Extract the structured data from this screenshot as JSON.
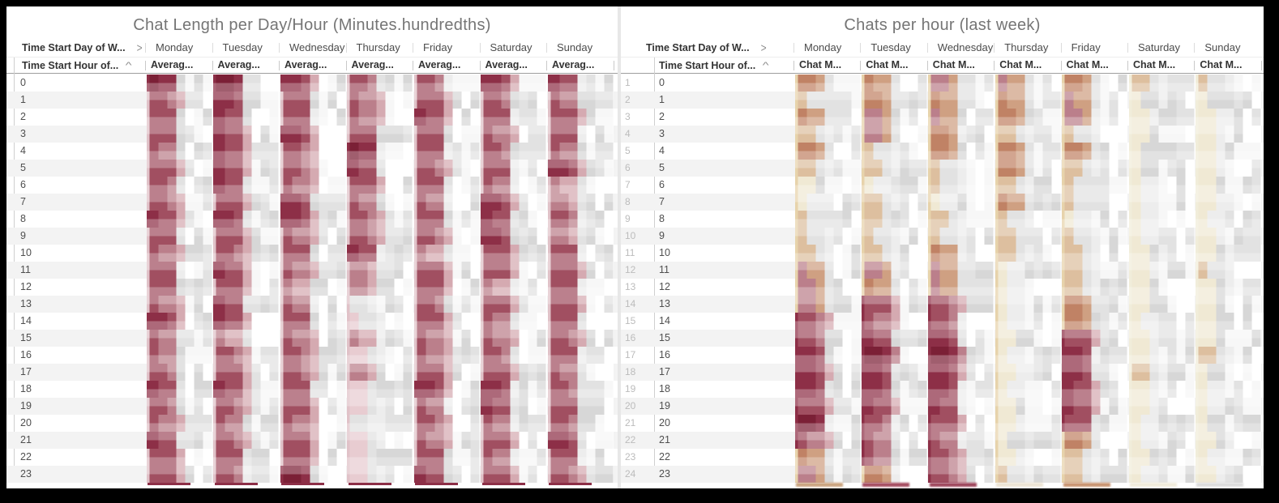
{
  "frame": {
    "background": "#000000",
    "panel_background": "#ffffff",
    "divider": "#e7e7e7"
  },
  "palette": {
    "maroon": [
      "#7b2036",
      "#8d2f47",
      "#a14f61",
      "#bb7f8b",
      "#d5aab1",
      "#e8ccd1"
    ],
    "warm": [
      "#c08265",
      "#cfa082",
      "#ddbf9f",
      "#ecdcc0",
      "#f3eddb"
    ],
    "gray": [
      "#d7d7d7",
      "#e2e2e2",
      "#ededed",
      "#f7f7f7",
      "#ffffff"
    ],
    "stripe_rose": "#e0c2c8",
    "stripe_rose_dark": "#8d2f47",
    "stripe_tan": "#e7d3ab",
    "stripe_cream": "#f1edda",
    "row_alt": "#f3f3f3",
    "header_line": "#9e9e9e",
    "light_line": "#ededed",
    "title_color": "#757575",
    "header_text": "#333333",
    "day_text": "#4c4c4c",
    "hour_text": "#4f4f4f",
    "row_number_text": "#bcbcbc",
    "total_cut_bar": "#8c2e46",
    "partial_row_colors_right": [
      "#c9a27c",
      "#a3495e",
      "#9c4258",
      "#ece4d4",
      "#c8926e",
      "#f0ebdb",
      "#dcdcdc"
    ]
  },
  "panels": [
    {
      "title": "Chat Length per Day/Hour (Minutes.hundredths)",
      "column_field_label": "Time Start Day of W...",
      "column_sort_icon": "chevron-right-icon",
      "row_field_label": "Time Start Hour of...",
      "row_sort_icon": "caret-up-icon",
      "measure_label": "Averag...",
      "days": [
        "Monday",
        "Tuesday",
        "Wednesday",
        "Thursday",
        "Friday",
        "Saturday",
        "Sunday"
      ],
      "hours": [
        "0",
        "1",
        "2",
        "3",
        "4",
        "5",
        "6",
        "7",
        "8",
        "9",
        "10",
        "11",
        "12",
        "13",
        "14",
        "15",
        "16",
        "17",
        "18",
        "19",
        "20",
        "21",
        "22",
        "23"
      ],
      "row_numbers": [],
      "tone": "rose"
    },
    {
      "title": "Chats per hour (last week)",
      "column_field_label": "Time Start Day of W...",
      "column_sort_icon": "chevron-right-icon",
      "row_field_label": "Time Start Hour of...",
      "row_sort_icon": "caret-up-icon",
      "measure_label": "Chat M...",
      "days": [
        "Monday",
        "Tuesday",
        "Wednesday",
        "Thursday",
        "Friday",
        "Saturday",
        "Sunday"
      ],
      "hours": [
        "0",
        "1",
        "2",
        "3",
        "4",
        "5",
        "6",
        "7",
        "8",
        "9",
        "10",
        "11",
        "12",
        "13",
        "14",
        "15",
        "16",
        "17",
        "18",
        "19",
        "20",
        "21",
        "22",
        "23"
      ],
      "row_numbers": [
        "1",
        "2",
        "3",
        "4",
        "5",
        "6",
        "7",
        "8",
        "9",
        "10",
        "11",
        "12",
        "13",
        "14",
        "15",
        "16",
        "17",
        "18",
        "19",
        "20",
        "21",
        "22",
        "23",
        "24"
      ],
      "tone": "warm"
    }
  ],
  "chart_data": [
    {
      "type": "heatmap",
      "title": "Chat Length per Day/Hour (Minutes.hundredths)",
      "x": [
        "Monday",
        "Tuesday",
        "Wednesday",
        "Thursday",
        "Friday",
        "Saturday",
        "Sunday"
      ],
      "y": [
        0,
        1,
        2,
        3,
        4,
        5,
        6,
        7,
        8,
        9,
        10,
        11,
        12,
        13,
        14,
        15,
        16,
        17,
        18,
        19,
        20,
        21,
        22,
        23
      ],
      "values_readable": false,
      "note": "Cell values are pixelated/redacted in the source screenshot; intensity 0-9 estimated from pixel color density",
      "series": [
        {
          "name": "Monday",
          "intensity": [
            9,
            6,
            5,
            6,
            6,
            5,
            6,
            6,
            7,
            6,
            5,
            6,
            5,
            6,
            7,
            5,
            6,
            6,
            7,
            5,
            6,
            8,
            5,
            6
          ]
        },
        {
          "name": "Tuesday",
          "intensity": [
            9,
            8,
            8,
            7,
            8,
            8,
            7,
            6,
            7,
            6,
            6,
            7,
            6,
            7,
            7,
            4,
            6,
            6,
            7,
            6,
            5,
            6,
            6,
            6
          ]
        },
        {
          "name": "Wednesday",
          "intensity": [
            8,
            6,
            6,
            8,
            5,
            5,
            5,
            8,
            7,
            6,
            5,
            5,
            4,
            5,
            6,
            5,
            5,
            5,
            6,
            5,
            6,
            5,
            5,
            9
          ]
        },
        {
          "name": "Thursday",
          "intensity": [
            6,
            5,
            6,
            6,
            9,
            8,
            5,
            5,
            6,
            5,
            7,
            4,
            3,
            1,
            2,
            3,
            2,
            3,
            2,
            2,
            1,
            2,
            2,
            2
          ]
        },
        {
          "name": "Friday",
          "intensity": [
            6,
            6,
            8,
            6,
            6,
            5,
            6,
            6,
            6,
            5,
            4,
            5,
            5,
            5,
            6,
            5,
            5,
            6,
            8,
            5,
            5,
            6,
            5,
            7
          ]
        },
        {
          "name": "Saturday",
          "intensity": [
            8,
            6,
            5,
            5,
            6,
            5,
            5,
            7,
            8,
            8,
            5,
            6,
            4,
            6,
            5,
            5,
            6,
            5,
            8,
            7,
            5,
            5,
            5,
            6
          ]
        },
        {
          "name": "Sunday",
          "intensity": [
            7,
            5,
            6,
            5,
            5,
            7,
            4,
            4,
            5,
            4,
            6,
            5,
            5,
            5,
            5,
            6,
            6,
            5,
            5,
            5,
            5,
            8,
            5,
            6
          ]
        }
      ]
    },
    {
      "type": "heatmap",
      "title": "Chats per hour (last week)",
      "x": [
        "Monday",
        "Tuesday",
        "Wednesday",
        "Thursday",
        "Friday",
        "Saturday",
        "Sunday"
      ],
      "y": [
        0,
        1,
        2,
        3,
        4,
        5,
        6,
        7,
        8,
        9,
        10,
        11,
        12,
        13,
        14,
        15,
        16,
        17,
        18,
        19,
        20,
        21,
        22,
        23
      ],
      "values_readable": false,
      "note": "Cell values are pixelated/redacted in the source screenshot; intensity 0-9 estimated from pixel color density",
      "series": [
        {
          "name": "Monday",
          "intensity": [
            3,
            2,
            3,
            2,
            3,
            2,
            1,
            1,
            2,
            2,
            2,
            3,
            3,
            4,
            5,
            6,
            8,
            7,
            7,
            6,
            9,
            6,
            4,
            3
          ]
        },
        {
          "name": "Tuesday",
          "intensity": [
            4,
            3,
            4,
            3,
            2,
            2,
            1,
            2,
            2,
            2,
            2,
            3,
            4,
            5,
            6,
            8,
            9,
            8,
            8,
            7,
            6,
            6,
            5,
            4
          ]
        },
        {
          "name": "Wednesday",
          "intensity": [
            4,
            3,
            4,
            3,
            3,
            2,
            2,
            1,
            2,
            2,
            3,
            3,
            4,
            6,
            6,
            8,
            9,
            8,
            7,
            8,
            6,
            5,
            5,
            5
          ]
        },
        {
          "name": "Thursday",
          "intensity": [
            4,
            4,
            3,
            2,
            4,
            3,
            2,
            3,
            2,
            2,
            2,
            1,
            1,
            1,
            1,
            1,
            1,
            1,
            1,
            1,
            1,
            1,
            1,
            2
          ]
        },
        {
          "name": "Friday",
          "intensity": [
            4,
            3,
            3,
            2,
            3,
            2,
            2,
            2,
            1,
            2,
            2,
            2,
            2,
            3,
            4,
            6,
            7,
            7,
            8,
            7,
            5,
            3,
            2,
            2
          ]
        },
        {
          "name": "Saturday",
          "intensity": [
            2,
            1,
            1,
            1,
            1,
            1,
            1,
            1,
            1,
            1,
            1,
            1,
            1,
            1,
            1,
            1,
            1,
            2,
            1,
            1,
            1,
            1,
            1,
            1
          ]
        },
        {
          "name": "Sunday",
          "intensity": [
            2,
            1,
            1,
            1,
            1,
            1,
            1,
            1,
            1,
            1,
            1,
            2,
            1,
            1,
            1,
            1,
            2,
            1,
            1,
            1,
            1,
            1,
            1,
            1
          ]
        }
      ]
    }
  ]
}
